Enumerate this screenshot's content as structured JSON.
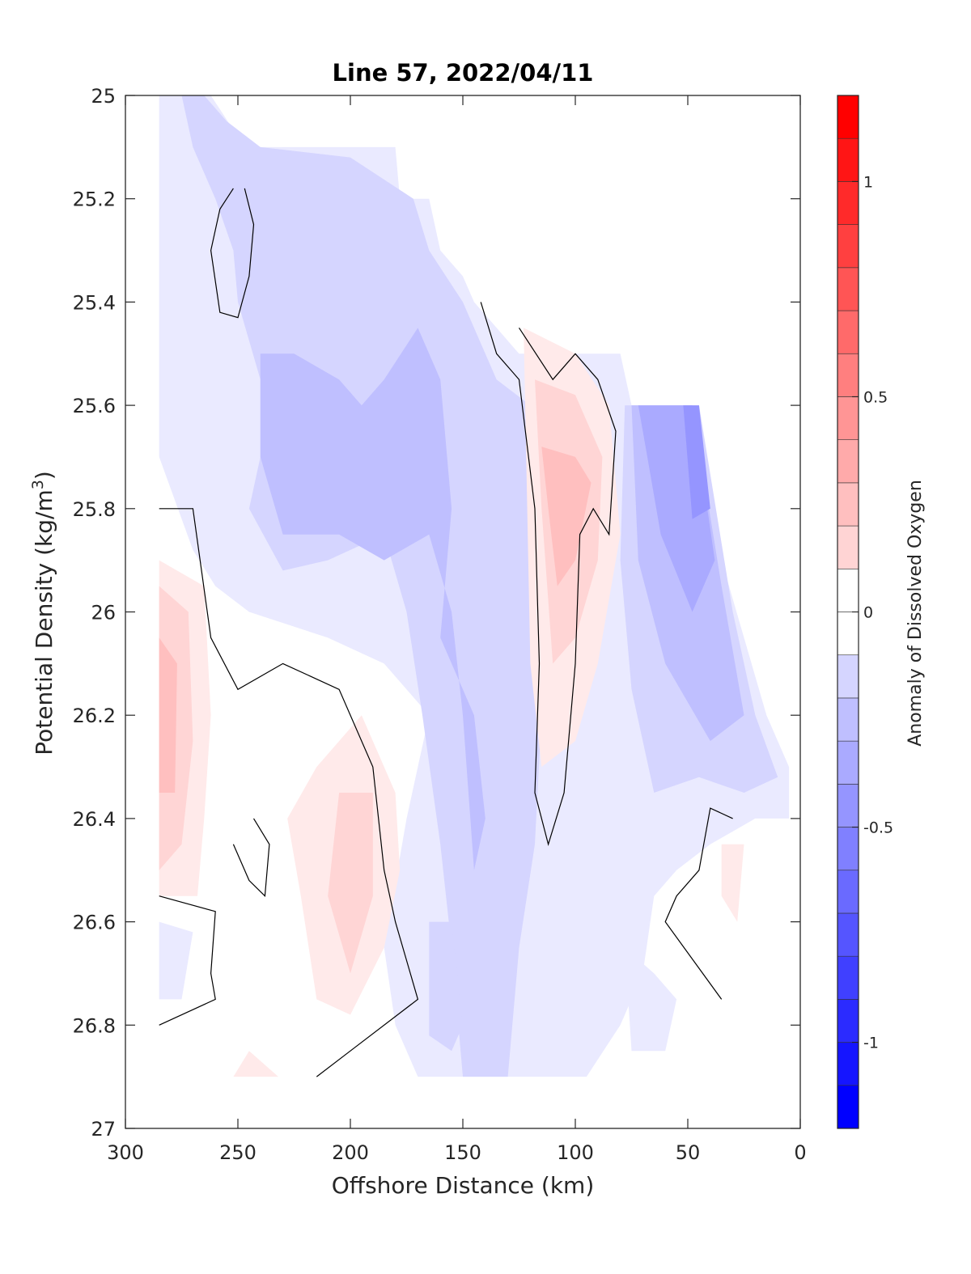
{
  "chart_data": {
    "type": "contourf",
    "title": "Line 57, 2022/04/11",
    "xlabel": "Offshore Distance (km)",
    "ylabel_prefix": "Potential Density (kg/m",
    "ylabel_sup": "3",
    "ylabel_suffix": ")",
    "xlim": [
      0,
      300
    ],
    "x_reversed": true,
    "ylim": [
      25,
      27
    ],
    "y_reversed": true,
    "xticks": [
      300,
      250,
      200,
      150,
      100,
      50,
      0
    ],
    "yticks": [
      25,
      25.2,
      25.4,
      25.6,
      25.8,
      26,
      26.2,
      26.4,
      26.6,
      26.8,
      27
    ],
    "xtick_labels": [
      "300",
      "250",
      "200",
      "150",
      "100",
      "50",
      "0"
    ],
    "ytick_labels": [
      "25",
      "25.2",
      "25.4",
      "25.6",
      "25.8",
      "26",
      "26.2",
      "26.4",
      "26.6",
      "26.8",
      "27"
    ],
    "grid": false,
    "colorbar": {
      "label": "Anomaly of Dissolved Oxygen",
      "range": [
        -1.2,
        1.2
      ],
      "step": 0.1,
      "ticks": [
        -1,
        -0.5,
        0,
        0.5,
        1
      ],
      "tick_labels": [
        "-1",
        "-0.5",
        "0",
        "0.5",
        "1"
      ],
      "low_color": "#0000ff",
      "mid_color": "#ffffff",
      "high_color": "#ff0000"
    },
    "contour_line_level": 0,
    "regions": [
      {
        "level": -0.1,
        "points": [
          [
            285,
            25
          ],
          [
            262,
            25
          ],
          [
            247,
            25.1
          ],
          [
            180,
            25.1
          ],
          [
            178,
            25.2
          ],
          [
            165,
            25.2
          ],
          [
            160,
            25.3
          ],
          [
            150,
            25.35
          ],
          [
            145,
            25.4
          ],
          [
            135,
            25.45
          ],
          [
            125,
            25.5
          ],
          [
            95,
            25.5
          ],
          [
            80,
            25.5
          ],
          [
            75,
            25.6
          ],
          [
            45,
            25.6
          ],
          [
            35,
            25.9
          ],
          [
            15,
            26.2
          ],
          [
            5,
            26.3
          ],
          [
            5,
            26.4
          ],
          [
            20,
            26.4
          ],
          [
            40,
            26.45
          ],
          [
            55,
            26.5
          ],
          [
            65,
            26.55
          ],
          [
            70,
            26.7
          ],
          [
            80,
            26.8
          ],
          [
            95,
            26.9
          ],
          [
            170,
            26.9
          ],
          [
            180,
            26.8
          ],
          [
            185,
            26.65
          ],
          [
            175,
            26.4
          ],
          [
            165,
            26.2
          ],
          [
            185,
            26.1
          ],
          [
            210,
            26.05
          ],
          [
            245,
            26
          ],
          [
            260,
            25.95
          ],
          [
            270,
            25.88
          ],
          [
            285,
            25.7
          ]
        ]
      },
      {
        "level": -0.2,
        "points": [
          [
            285,
            25
          ],
          [
            275,
            25
          ],
          [
            270,
            25.1
          ],
          [
            260,
            25.2
          ],
          [
            252,
            25.3
          ],
          [
            250,
            25.4
          ],
          [
            240,
            25.55
          ],
          [
            240,
            25.7
          ],
          [
            245,
            25.8
          ],
          [
            230,
            25.92
          ],
          [
            210,
            25.9
          ],
          [
            185,
            25.85
          ],
          [
            175,
            26
          ],
          [
            168,
            26.2
          ],
          [
            160,
            26.45
          ],
          [
            155,
            26.65
          ],
          [
            150,
            26.9
          ],
          [
            130,
            26.9
          ],
          [
            125,
            26.65
          ],
          [
            118,
            26.45
          ],
          [
            115,
            26.2
          ],
          [
            112,
            25.9
          ],
          [
            116,
            25.7
          ],
          [
            120,
            25.6
          ],
          [
            135,
            25.55
          ],
          [
            150,
            25.4
          ],
          [
            165,
            25.3
          ],
          [
            172,
            25.2
          ],
          [
            200,
            25.12
          ],
          [
            240,
            25.1
          ],
          [
            255,
            25.05
          ],
          [
            265,
            25
          ],
          [
            285,
            25
          ]
        ]
      },
      {
        "level": -0.3,
        "points": [
          [
            240,
            25.5
          ],
          [
            225,
            25.5
          ],
          [
            205,
            25.55
          ],
          [
            195,
            25.6
          ],
          [
            185,
            25.55
          ],
          [
            170,
            25.45
          ],
          [
            160,
            25.55
          ],
          [
            155,
            25.8
          ],
          [
            160,
            26.05
          ],
          [
            145,
            26.2
          ],
          [
            140,
            26.4
          ],
          [
            145,
            26.5
          ],
          [
            150,
            26.2
          ],
          [
            155,
            26
          ],
          [
            165,
            25.85
          ],
          [
            185,
            25.9
          ],
          [
            205,
            25.85
          ],
          [
            230,
            25.85
          ],
          [
            240,
            25.7
          ]
        ]
      },
      {
        "level": -0.2,
        "points": [
          [
            78,
            25.6
          ],
          [
            45,
            25.6
          ],
          [
            30,
            26
          ],
          [
            20,
            26.2
          ],
          [
            10,
            26.32
          ],
          [
            25,
            26.35
          ],
          [
            45,
            26.32
          ],
          [
            65,
            26.35
          ],
          [
            75,
            26.15
          ],
          [
            80,
            25.9
          ]
        ]
      },
      {
        "level": -0.3,
        "points": [
          [
            75,
            25.6
          ],
          [
            48,
            25.6
          ],
          [
            35,
            25.95
          ],
          [
            25,
            26.2
          ],
          [
            40,
            26.25
          ],
          [
            60,
            26.1
          ],
          [
            72,
            25.9
          ]
        ]
      },
      {
        "level": -0.4,
        "points": [
          [
            72,
            25.6
          ],
          [
            48,
            25.6
          ],
          [
            38,
            25.9
          ],
          [
            48,
            26
          ],
          [
            62,
            25.85
          ],
          [
            68,
            25.7
          ]
        ]
      },
      {
        "level": -0.5,
        "points": [
          [
            52,
            25.6
          ],
          [
            45,
            25.6
          ],
          [
            40,
            25.8
          ],
          [
            48,
            25.82
          ]
        ]
      },
      {
        "level": -0.2,
        "points": [
          [
            165,
            26.6
          ],
          [
            155,
            26.6
          ],
          [
            150,
            26.8
          ],
          [
            155,
            26.85
          ],
          [
            165,
            26.82
          ]
        ]
      },
      {
        "level": -0.1,
        "points": [
          [
            285,
            26.6
          ],
          [
            270,
            26.62
          ],
          [
            275,
            26.75
          ],
          [
            285,
            26.75
          ]
        ]
      },
      {
        "level": -0.1,
        "points": [
          [
            78,
            26.65
          ],
          [
            65,
            26.7
          ],
          [
            55,
            26.75
          ],
          [
            60,
            26.85
          ],
          [
            75,
            26.85
          ]
        ]
      },
      {
        "level": 0.1,
        "points": [
          [
            285,
            25.9
          ],
          [
            265,
            25.95
          ],
          [
            262,
            26.2
          ],
          [
            265,
            26.4
          ],
          [
            268,
            26.55
          ],
          [
            285,
            26.55
          ]
        ]
      },
      {
        "level": 0.2,
        "points": [
          [
            285,
            25.95
          ],
          [
            272,
            26
          ],
          [
            270,
            26.25
          ],
          [
            275,
            26.45
          ],
          [
            285,
            26.5
          ]
        ]
      },
      {
        "level": 0.3,
        "points": [
          [
            285,
            26.05
          ],
          [
            277,
            26.1
          ],
          [
            278,
            26.35
          ],
          [
            285,
            26.35
          ]
        ]
      },
      {
        "level": 0.1,
        "points": [
          [
            215,
            26.3
          ],
          [
            195,
            26.2
          ],
          [
            180,
            26.35
          ],
          [
            178,
            26.5
          ],
          [
            185,
            26.65
          ],
          [
            200,
            26.78
          ],
          [
            215,
            26.75
          ],
          [
            222,
            26.55
          ],
          [
            228,
            26.4
          ]
        ]
      },
      {
        "level": 0.2,
        "points": [
          [
            205,
            26.35
          ],
          [
            190,
            26.35
          ],
          [
            190,
            26.55
          ],
          [
            200,
            26.7
          ],
          [
            210,
            26.55
          ]
        ]
      },
      {
        "level": 0.1,
        "points": [
          [
            123,
            25.45
          ],
          [
            100,
            25.5
          ],
          [
            85,
            25.6
          ],
          [
            80,
            25.85
          ],
          [
            90,
            26.1
          ],
          [
            100,
            26.25
          ],
          [
            115,
            26.3
          ],
          [
            120,
            26.1
          ]
        ]
      },
      {
        "level": 0.2,
        "points": [
          [
            118,
            25.55
          ],
          [
            100,
            25.58
          ],
          [
            88,
            25.7
          ],
          [
            90,
            25.9
          ],
          [
            100,
            26.05
          ],
          [
            110,
            26.1
          ],
          [
            115,
            25.8
          ]
        ]
      },
      {
        "level": 0.3,
        "points": [
          [
            115,
            25.68
          ],
          [
            100,
            25.7
          ],
          [
            93,
            25.75
          ],
          [
            100,
            25.9
          ],
          [
            108,
            25.95
          ],
          [
            112,
            25.8
          ]
        ]
      },
      {
        "level": 0.1,
        "points": [
          [
            35,
            26.45
          ],
          [
            25,
            26.45
          ],
          [
            28,
            26.6
          ],
          [
            35,
            26.55
          ]
        ]
      },
      {
        "level": 0.1,
        "points": [
          [
            245,
            26.85
          ],
          [
            232,
            26.9
          ],
          [
            252,
            26.9
          ]
        ]
      }
    ],
    "contour_lines": [
      [
        [
          252,
          25.18
        ],
        [
          258,
          25.22
        ],
        [
          262,
          25.3
        ],
        [
          258,
          25.42
        ],
        [
          250,
          25.43
        ],
        [
          245,
          25.35
        ],
        [
          243,
          25.25
        ],
        [
          247,
          25.18
        ]
      ],
      [
        [
          142,
          25.4
        ],
        [
          135,
          25.5
        ],
        [
          125,
          25.55
        ],
        [
          118,
          25.8
        ],
        [
          116,
          26.1
        ],
        [
          118,
          26.35
        ],
        [
          112,
          26.45
        ],
        [
          105,
          26.35
        ],
        [
          100,
          26.1
        ],
        [
          98,
          25.85
        ],
        [
          92,
          25.8
        ],
        [
          85,
          25.85
        ],
        [
          82,
          25.65
        ],
        [
          90,
          25.55
        ],
        [
          100,
          25.5
        ],
        [
          110,
          25.55
        ],
        [
          125,
          25.45
        ]
      ],
      [
        [
          285,
          25.8
        ],
        [
          270,
          25.8
        ],
        [
          262,
          26.05
        ],
        [
          250,
          26.15
        ],
        [
          230,
          26.1
        ],
        [
          205,
          26.15
        ],
        [
          190,
          26.3
        ],
        [
          185,
          26.5
        ],
        [
          180,
          26.6
        ],
        [
          170,
          26.75
        ],
        [
          200,
          26.85
        ],
        [
          215,
          26.9
        ]
      ],
      [
        [
          285,
          26.55
        ],
        [
          260,
          26.58
        ],
        [
          262,
          26.7
        ],
        [
          260,
          26.75
        ],
        [
          285,
          26.8
        ]
      ],
      [
        [
          252,
          26.45
        ],
        [
          245,
          26.52
        ],
        [
          238,
          26.55
        ],
        [
          236,
          26.45
        ],
        [
          243,
          26.4
        ]
      ],
      [
        [
          30,
          26.4
        ],
        [
          40,
          26.38
        ],
        [
          45,
          26.5
        ],
        [
          55,
          26.55
        ],
        [
          60,
          26.6
        ],
        [
          35,
          26.75
        ]
      ]
    ]
  }
}
